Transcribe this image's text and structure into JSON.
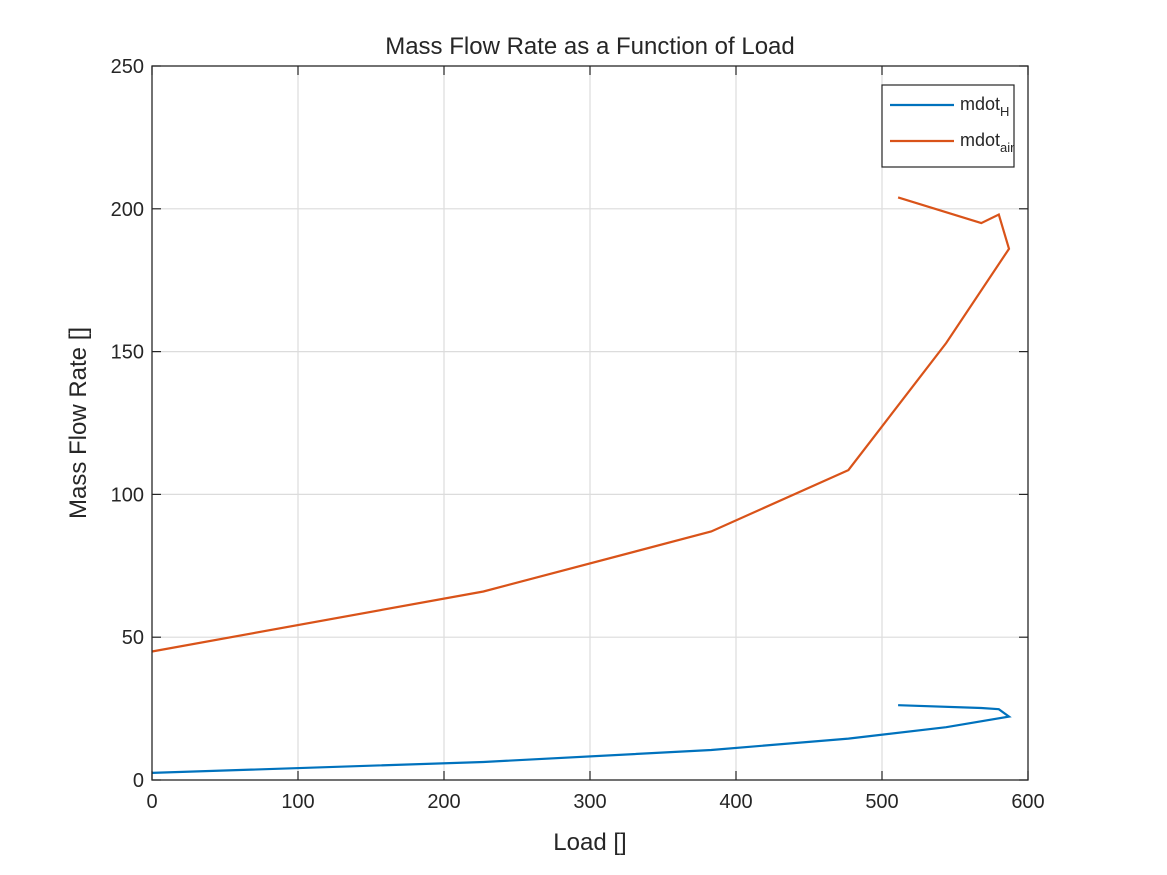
{
  "chart_data": {
    "type": "line",
    "title": "Mass Flow Rate as a Function of Load",
    "xlabel": "Load []",
    "ylabel": "Mass Flow Rate []",
    "xlim": [
      0,
      600
    ],
    "ylim": [
      0,
      250
    ],
    "xticks": [
      0,
      100,
      200,
      300,
      400,
      500,
      600
    ],
    "yticks": [
      0,
      50,
      100,
      150,
      200,
      250
    ],
    "grid": true,
    "legend_position": "top-right",
    "series": [
      {
        "name": "mdot_H",
        "legend_base": "mdot",
        "legend_sub": "H",
        "color": "#0072BD",
        "x": [
          0,
          227,
          383,
          477,
          544,
          587,
          580,
          568,
          511
        ],
        "y": [
          2.5,
          6.3,
          10.5,
          14.5,
          18.5,
          22.2,
          24.8,
          25.2,
          26.2
        ]
      },
      {
        "name": "mdot_air",
        "legend_base": "mdot",
        "legend_sub": "air",
        "color": "#D95319",
        "x": [
          0,
          227,
          383,
          477,
          544,
          587,
          580,
          568,
          511
        ],
        "y": [
          45,
          66,
          87,
          108.5,
          153,
          186,
          198,
          195,
          204
        ]
      }
    ]
  }
}
